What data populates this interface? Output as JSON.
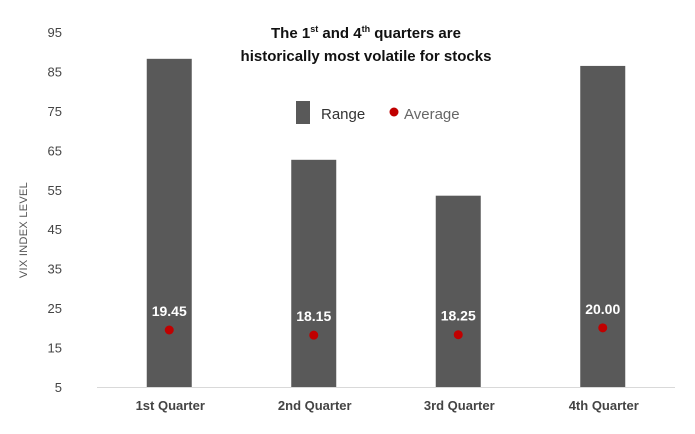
{
  "chart_data": {
    "type": "bar",
    "title_line1_parts": [
      "The 1",
      "st",
      " and 4",
      "th",
      " quarters are"
    ],
    "title_line2": "historically most volatile for stocks",
    "ylabel": "VIX INDEX LEVEL",
    "xlabel": "",
    "categories": [
      "1st Quarter",
      "2nd Quarter",
      "3rd Quarter",
      "4th Quarter"
    ],
    "ylim": [
      5,
      95
    ],
    "yticks": [
      "5",
      "15",
      "25",
      "35",
      "45",
      "55",
      "65",
      "75",
      "85",
      "95"
    ],
    "grid": false,
    "legend_position": "top-center",
    "series": [
      {
        "name": "Range",
        "kind": "bar",
        "color": "#595959",
        "values": [
          88.2,
          62.6,
          53.5,
          86.4
        ]
      },
      {
        "name": "Average",
        "kind": "scatter",
        "color": "#c00000",
        "values": [
          19.45,
          18.15,
          18.25,
          20.0
        ],
        "labels": [
          "19.45",
          "18.15",
          "18.25",
          "20.00"
        ]
      }
    ]
  }
}
